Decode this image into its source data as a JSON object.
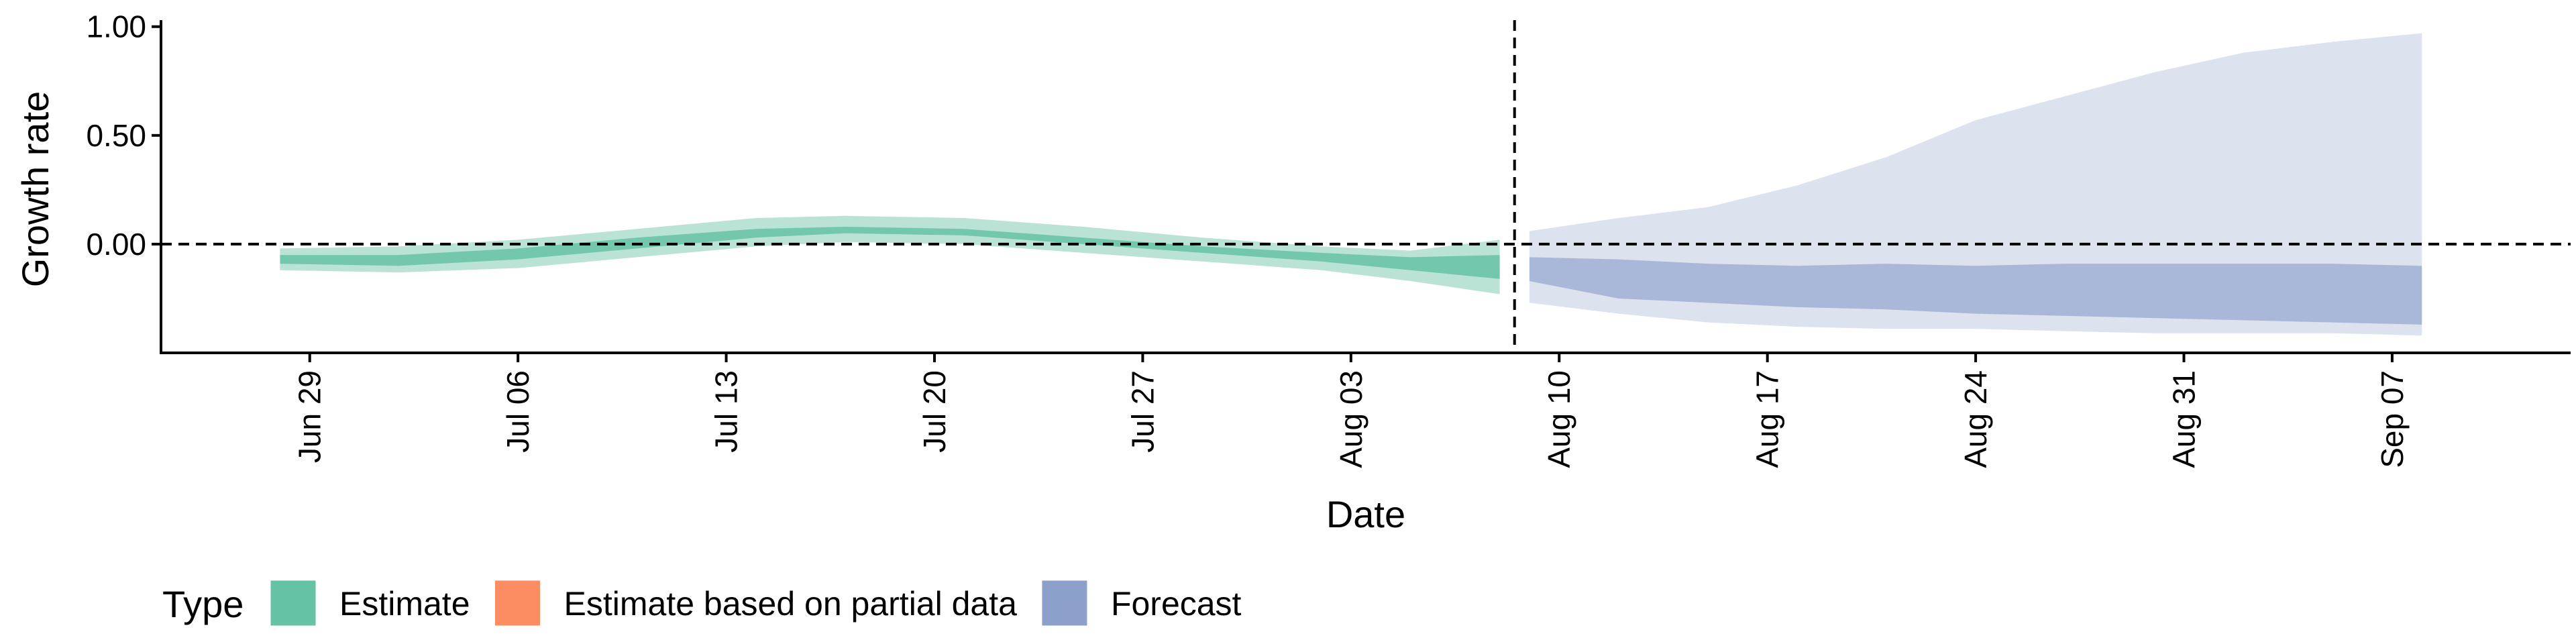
{
  "chart_data": {
    "type": "area",
    "xlabel": "Date",
    "ylabel": "Growth rate",
    "ylim": [
      -0.5,
      1.03
    ],
    "xlim": [
      "2020-06-24",
      "2020-09-13"
    ],
    "y_ticks": [
      0,
      0.5,
      1
    ],
    "y_tick_labels": [
      "0.00",
      "0.50",
      "1.00"
    ],
    "x_ticks": [
      "2020-06-29",
      "2020-07-06",
      "2020-07-13",
      "2020-07-20",
      "2020-07-27",
      "2020-08-03",
      "2020-08-10",
      "2020-08-17",
      "2020-08-24",
      "2020-08-31",
      "2020-09-07"
    ],
    "x_tick_labels": [
      "Jun 29",
      "Jul 06",
      "Jul 13",
      "Jul 20",
      "Jul 27",
      "Aug 03",
      "Aug 10",
      "Aug 17",
      "Aug 24",
      "Aug 31",
      "Sep 07"
    ],
    "reference_line_y": 0,
    "forecast_divider_date": "2020-08-09",
    "grid": false,
    "legend": {
      "title": "Type",
      "position": "bottom-left",
      "items": [
        {
          "label": "Estimate",
          "color": "#66c2a5"
        },
        {
          "label": "Estimate based on partial data",
          "color": "#fc8d62"
        },
        {
          "label": "Forecast",
          "color": "#8da0cb"
        }
      ]
    },
    "series": [
      {
        "name": "Estimate",
        "color": "#66c2a5",
        "x": [
          "2020-06-28",
          "2020-07-02",
          "2020-07-06",
          "2020-07-10",
          "2020-07-14",
          "2020-07-17",
          "2020-07-21",
          "2020-07-25",
          "2020-07-29",
          "2020-08-02",
          "2020-08-05",
          "2020-08-08"
        ],
        "lower_90": [
          -0.12,
          -0.13,
          -0.11,
          -0.06,
          -0.01,
          0.01,
          0.0,
          -0.04,
          -0.08,
          -0.12,
          -0.17,
          -0.23
        ],
        "upper_90": [
          -0.02,
          -0.01,
          0.02,
          0.07,
          0.12,
          0.13,
          0.12,
          0.08,
          0.03,
          -0.01,
          -0.03,
          0.02
        ],
        "lower_50": [
          -0.09,
          -0.1,
          -0.07,
          -0.02,
          0.03,
          0.05,
          0.04,
          0.0,
          -0.04,
          -0.08,
          -0.12,
          -0.16
        ],
        "upper_50": [
          -0.05,
          -0.05,
          -0.02,
          0.03,
          0.07,
          0.08,
          0.07,
          0.03,
          -0.01,
          -0.04,
          -0.06,
          -0.05
        ]
      },
      {
        "name": "Forecast",
        "color": "#8da0cb",
        "x": [
          "2020-08-09",
          "2020-08-12",
          "2020-08-15",
          "2020-08-18",
          "2020-08-21",
          "2020-08-24",
          "2020-08-27",
          "2020-08-30",
          "2020-09-02",
          "2020-09-05",
          "2020-09-08"
        ],
        "lower_90": [
          -0.27,
          -0.32,
          -0.36,
          -0.38,
          -0.39,
          -0.39,
          -0.4,
          -0.41,
          -0.41,
          -0.41,
          -0.42
        ],
        "upper_90": [
          0.06,
          0.12,
          0.17,
          0.27,
          0.4,
          0.57,
          0.68,
          0.79,
          0.88,
          0.93,
          0.97
        ],
        "lower_50": [
          -0.17,
          -0.25,
          -0.27,
          -0.29,
          -0.3,
          -0.32,
          -0.33,
          -0.34,
          -0.35,
          -0.36,
          -0.37
        ],
        "upper_50": [
          -0.06,
          -0.07,
          -0.09,
          -0.1,
          -0.09,
          -0.1,
          -0.09,
          -0.09,
          -0.09,
          -0.09,
          -0.1
        ]
      }
    ]
  }
}
